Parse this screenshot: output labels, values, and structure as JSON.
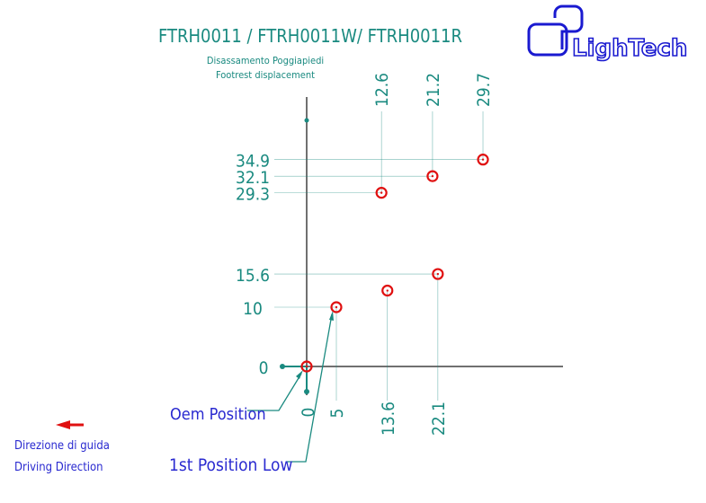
{
  "title": "FTRH0011 / FTRH0011W/ FTRH0011R",
  "subtitle_it": "Disassamento Poggiapiedi",
  "subtitle_en": "Footrest displacement",
  "logo_text": "LighTech",
  "direction": {
    "label_it": "Direzione di guida",
    "label_en": "Driving Direction",
    "arrow": "left"
  },
  "callouts": {
    "oem": "Oem Position",
    "first_low": "1st Position Low"
  },
  "origin": {
    "x_label": "0",
    "y_label": "0"
  },
  "points": [
    {
      "x": 0,
      "y": 0,
      "x_label": "",
      "y_label": ""
    },
    {
      "x": 5,
      "y": 10,
      "x_label": "5",
      "y_label": "10"
    },
    {
      "x": 13.6,
      "y": 12.8,
      "x_label": "13.6",
      "y_label": ""
    },
    {
      "x": 22.1,
      "y": 15.6,
      "x_label": "22.1",
      "y_label": "15.6"
    },
    {
      "x": 12.6,
      "y": 29.3,
      "x_label": "12.6",
      "y_label": "29.3"
    },
    {
      "x": 21.2,
      "y": 32.1,
      "x_label": "21.2",
      "y_label": "32.1"
    },
    {
      "x": 29.7,
      "y": 34.9,
      "x_label": "29.7",
      "y_label": "34.9"
    }
  ],
  "colors": {
    "dimension": "#1a8a80",
    "axis": "#707070",
    "marker": "#e01010",
    "callout": "#2a2ad0",
    "logo": "#1a1ad0"
  }
}
